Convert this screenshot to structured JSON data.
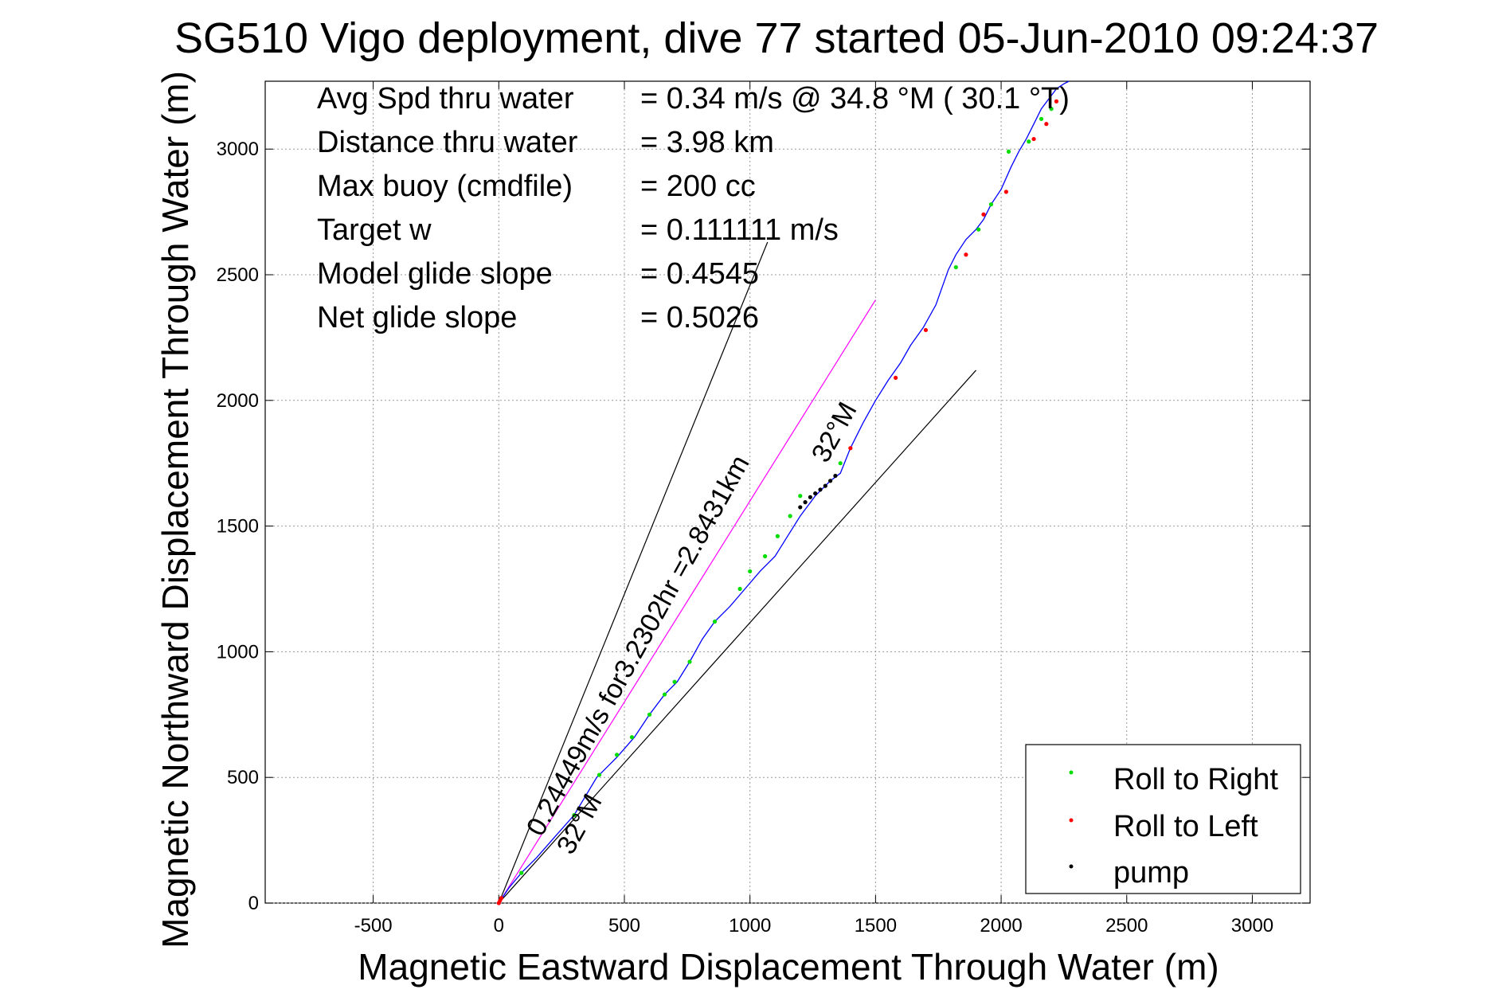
{
  "chart_data": {
    "type": "line",
    "title": "SG510 Vigo deployment, dive 77 started 05-Jun-2010 09:24:37",
    "xlabel": "Magnetic Eastward Displacement Through Water (m)",
    "ylabel": "Magnetic Northward Displacement Through Water (m)",
    "xlim": [
      -930,
      3230
    ],
    "ylim": [
      0,
      3270
    ],
    "xticks": [
      -500,
      0,
      500,
      1000,
      1500,
      2000,
      2500,
      3000
    ],
    "yticks": [
      0,
      500,
      1000,
      1500,
      2000,
      2500,
      3000
    ],
    "grid": true,
    "colors": {
      "track": "#0000ff",
      "roll_right": "#00dd00",
      "roll_left": "#ff0000",
      "pump": "#000000",
      "reference_lines": "#000000",
      "magenta_line": "#ff00ff"
    },
    "stats": [
      {
        "label": "Avg Spd thru water",
        "value": "=  0.34 m/s @  34.8 °M ( 30.1 °T)"
      },
      {
        "label": "Distance thru water",
        "value": "=  3.98 km"
      },
      {
        "label": "Max buoy (cmdfile)",
        "value": "= 200 cc"
      },
      {
        "label": "Target w",
        "value": "= 0.111111 m/s"
      },
      {
        "label": "Model glide slope",
        "value": "= 0.4545"
      },
      {
        "label": "Net glide slope",
        "value": "= 0.5026"
      }
    ],
    "annotations": {
      "current_text": "0.24449m/s for3.2302hr =2.8431km",
      "heading_upper": "32°M",
      "heading_lower": "32°M"
    },
    "reference_lines": [
      {
        "x": [
          0,
          1070
        ],
        "y": [
          0,
          2630
        ]
      },
      {
        "x": [
          0,
          1900
        ],
        "y": [
          0,
          2120
        ]
      }
    ],
    "magenta_line": {
      "x": [
        0,
        1500
      ],
      "y": [
        0,
        2400
      ]
    },
    "track": {
      "x": [
        0,
        40,
        90,
        150,
        220,
        300,
        390,
        470,
        540,
        600,
        660,
        710,
        760,
        810,
        860,
        920,
        980,
        1040,
        1100,
        1150,
        1200,
        1260,
        1320,
        1360,
        1400,
        1450,
        1500,
        1550,
        1600,
        1640,
        1690,
        1740,
        1790,
        1820,
        1860,
        1900,
        1930,
        1960,
        2000,
        2040,
        2070,
        2100,
        2130,
        2160,
        2190,
        2220,
        2250,
        2270
      ],
      "y": [
        0,
        60,
        120,
        180,
        260,
        350,
        500,
        580,
        660,
        750,
        830,
        880,
        960,
        1050,
        1120,
        1180,
        1250,
        1320,
        1380,
        1460,
        1540,
        1620,
        1680,
        1710,
        1810,
        1910,
        2000,
        2080,
        2150,
        2220,
        2290,
        2380,
        2520,
        2580,
        2640,
        2680,
        2720,
        2780,
        2840,
        2930,
        2990,
        3040,
        3100,
        3160,
        3200,
        3240,
        3260,
        3270
      ]
    },
    "roll_right": {
      "x": [
        90,
        300,
        400,
        470,
        530,
        600,
        660,
        700,
        760,
        860,
        960,
        1000,
        1060,
        1110,
        1160,
        1200,
        1360,
        1820,
        1910,
        1960,
        2030,
        2110,
        2160,
        2200
      ],
      "y": [
        120,
        350,
        510,
        590,
        660,
        750,
        830,
        880,
        960,
        1120,
        1250,
        1320,
        1380,
        1460,
        1540,
        1620,
        1750,
        2530,
        2680,
        2780,
        2990,
        3030,
        3120,
        3160
      ]
    },
    "roll_left": {
      "x": [
        0,
        5,
        10,
        1400,
        1580,
        1700,
        1860,
        1930,
        2020,
        2130,
        2180,
        2220
      ],
      "y": [
        0,
        10,
        20,
        1810,
        2090,
        2280,
        2580,
        2740,
        2830,
        3040,
        3100,
        3190
      ]
    },
    "pump": {
      "x": [
        1200,
        1220,
        1240,
        1260,
        1280,
        1300,
        1320,
        1340
      ],
      "y": [
        1575,
        1595,
        1615,
        1630,
        1645,
        1660,
        1680,
        1700
      ]
    },
    "legend": {
      "placement": "bottom-right",
      "items": [
        {
          "name": "Roll to Right",
          "color": "#00dd00"
        },
        {
          "name": "Roll to Left",
          "color": "#ff0000"
        },
        {
          "name": "pump",
          "color": "#000000"
        }
      ]
    }
  }
}
